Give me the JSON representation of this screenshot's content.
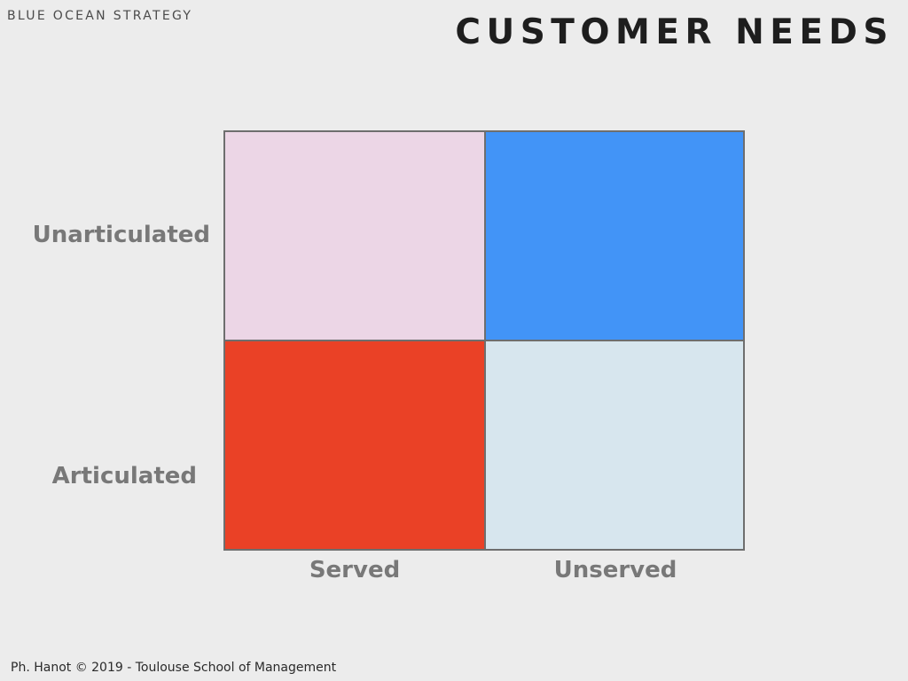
{
  "header": {
    "kicker": "BLUE OCEAN STRATEGY",
    "title": "CUSTOMER NEEDS"
  },
  "matrix": {
    "y_axis": {
      "top_label": "Unarticulated",
      "bottom_label": "Articulated"
    },
    "x_axis": {
      "left_label": "Served",
      "right_label": "Unserved"
    },
    "quadrants": {
      "top_left": {
        "color": "#ecd6e6"
      },
      "top_right": {
        "color": "#4294f7"
      },
      "bottom_left": {
        "color": "#ea4126"
      },
      "bottom_right": {
        "color": "#d7e6ee"
      }
    }
  },
  "footer": {
    "text": "Ph. Hanot © 2019  -  Toulouse School of Management"
  }
}
